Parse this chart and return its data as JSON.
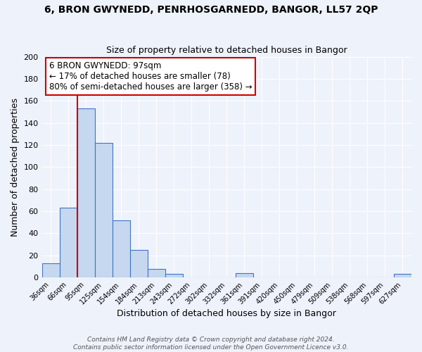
{
  "title": "6, BRON GWYNEDD, PENRHOSGARNEDD, BANGOR, LL57 2QP",
  "subtitle": "Size of property relative to detached houses in Bangor",
  "xlabel": "Distribution of detached houses by size in Bangor",
  "ylabel": "Number of detached properties",
  "bar_labels": [
    "36sqm",
    "66sqm",
    "95sqm",
    "125sqm",
    "154sqm",
    "184sqm",
    "213sqm",
    "243sqm",
    "272sqm",
    "302sqm",
    "332sqm",
    "361sqm",
    "391sqm",
    "420sqm",
    "450sqm",
    "479sqm",
    "509sqm",
    "538sqm",
    "568sqm",
    "597sqm",
    "627sqm"
  ],
  "bar_values": [
    13,
    63,
    153,
    122,
    52,
    25,
    8,
    3,
    0,
    0,
    0,
    4,
    0,
    0,
    0,
    0,
    0,
    0,
    0,
    0,
    3
  ],
  "bar_color": "#c5d8f0",
  "bar_edge_color": "#4472c4",
  "ylim": [
    0,
    200
  ],
  "yticks": [
    0,
    20,
    40,
    60,
    80,
    100,
    120,
    140,
    160,
    180,
    200
  ],
  "redline_index": 2,
  "annotation_title": "6 BRON GWYNEDD: 97sqm",
  "annotation_line1": "← 17% of detached houses are smaller (78)",
  "annotation_line2": "80% of semi-detached houses are larger (358) →",
  "annotation_box_color": "#ffffff",
  "annotation_box_edge": "#cc0000",
  "redline_color": "#cc0000",
  "footer1": "Contains HM Land Registry data © Crown copyright and database right 2024.",
  "footer2": "Contains public sector information licensed under the Open Government Licence v3.0.",
  "background_color": "#eef2fb",
  "plot_background": "#eef2fb",
  "grid_color": "#ffffff",
  "title_fontsize": 10,
  "subtitle_fontsize": 9
}
